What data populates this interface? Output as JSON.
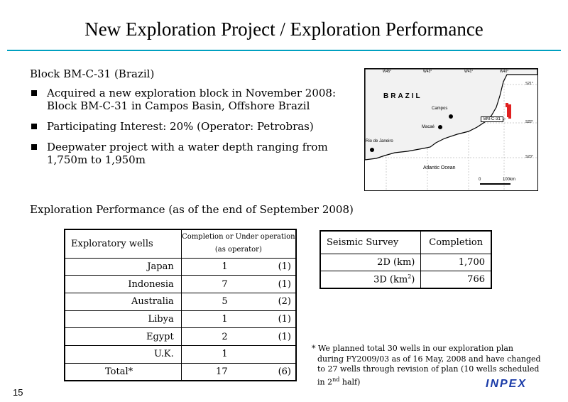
{
  "title": "New Exploration Project / Exploration Performance",
  "block_heading": "Block BM-C-31 (Brazil)",
  "bullets": [
    [
      "Acquired a new exploration block in November 2008:",
      "Block BM-C-31 in Campos Basin, Offshore Brazil"
    ],
    [
      "Participating Interest: 20% (Operator: Petrobras)"
    ],
    [
      "Deepwater project with a water depth ranging from",
      "1,750m to 1,950m"
    ]
  ],
  "map": {
    "longitudes": [
      "W45°",
      "W43°",
      "W41°",
      "W40°"
    ],
    "latitudes": [
      "S21°",
      "S22°",
      "S23°"
    ],
    "country": "BRAZIL",
    "cities": [
      "Campos",
      "Macaé",
      "Rio de Janeiro"
    ],
    "block_label": "BM-C-31",
    "ocean": "Atlantic Ocean",
    "scale_start": "0",
    "scale_end": "100km",
    "colors": {
      "block": "#e02020",
      "coast": "#000000"
    }
  },
  "perf_heading": "Exploration Performance (as of the end of September 2008)",
  "wells_table": {
    "header_col1": "Exploratory wells",
    "header_col2_line1": "Completion or Under operation",
    "header_col2_line2": "(as operator)",
    "rows": [
      {
        "country": "Japan",
        "count": "1",
        "operator": "(1)"
      },
      {
        "country": "Indonesia",
        "count": "7",
        "operator": "(1)"
      },
      {
        "country": "Australia",
        "count": "5",
        "operator": "(2)"
      },
      {
        "country": "Libya",
        "count": "1",
        "operator": "(1)"
      },
      {
        "country": "Egypt",
        "count": "2",
        "operator": "(1)"
      },
      {
        "country": "U.K.",
        "count": "1",
        "operator": ""
      }
    ],
    "total": {
      "label": "Total*",
      "count": "17",
      "operator": "(6)"
    }
  },
  "seismic_table": {
    "header_col1": "Seismic Survey",
    "header_col2": "Completion",
    "rows": [
      {
        "label": "2D (km)",
        "value": "1,700"
      },
      {
        "label_base": "3D (km",
        "label_sup": "2",
        "label_end": ")",
        "value": "766"
      }
    ]
  },
  "footnote": {
    "line1": "* We planned total 30 wells in our exploration plan",
    "line2": "during FY2009/03 as of 16 May, 2008 and have changed",
    "line3": "to 27 wells through revision of plan (10 wells scheduled",
    "line4_base": "in 2",
    "line4_sup": "nd",
    "line4_end": " half)"
  },
  "page_number": "15",
  "logo_text": "INPEX"
}
